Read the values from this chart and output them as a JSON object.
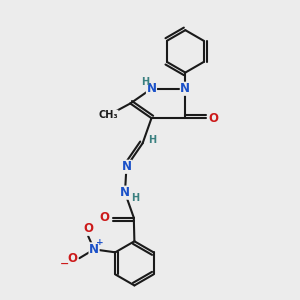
{
  "background_color": "#ececec",
  "bond_color": "#1a1a1a",
  "bond_width": 1.5,
  "atom_colors": {
    "N": "#1a50c8",
    "O": "#cc1a1a",
    "H": "#3a8080",
    "C": "#1a1a1a"
  },
  "font_size_atom": 8.5,
  "font_size_h": 7.0,
  "figsize": [
    3.0,
    3.0
  ],
  "dpi": 100
}
